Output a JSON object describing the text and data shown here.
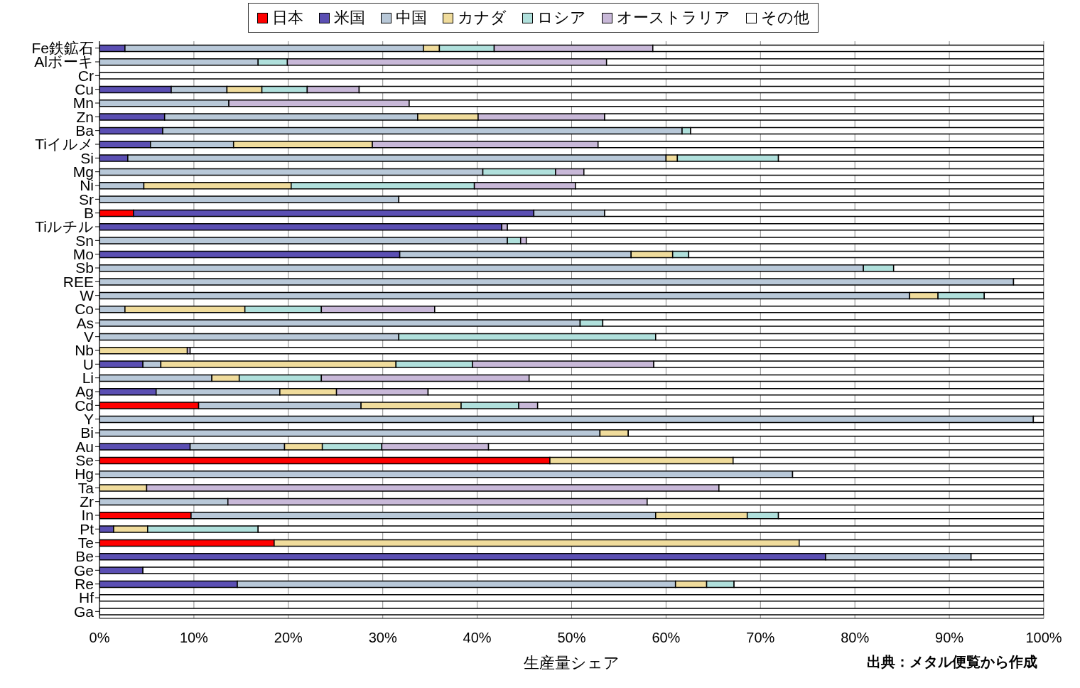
{
  "chart_data": {
    "type": "bar",
    "orientation": "horizontal",
    "stacked": true,
    "categories": [
      "Fe鉄鉱石",
      "Alボーキ",
      "Cr",
      "Cu",
      "Mn",
      "Zn",
      "Ba",
      "Tiイルメ",
      "Si",
      "Mg",
      "Ni",
      "Sr",
      "B",
      "Tiルチル",
      "Sn",
      "Mo",
      "Sb",
      "REE",
      "W",
      "Co",
      "As",
      "V",
      "Nb",
      "U",
      "Li",
      "Ag",
      "Cd",
      "Y",
      "Bi",
      "Au",
      "Se",
      "Hg",
      "Ta",
      "Zr",
      "In",
      "Pt",
      "Te",
      "Be",
      "Ge",
      "Re",
      "Hf",
      "Ga"
    ],
    "series": [
      {
        "name": "日本",
        "color": "#ff0000",
        "values": [
          null,
          null,
          null,
          null,
          null,
          null,
          null,
          null,
          null,
          null,
          null,
          null,
          3.6,
          null,
          null,
          null,
          null,
          null,
          null,
          null,
          null,
          null,
          null,
          null,
          null,
          null,
          10.5,
          null,
          null,
          null,
          47.7,
          null,
          null,
          null,
          9.7,
          null,
          18.5,
          null,
          null,
          null,
          null,
          null
        ]
      },
      {
        "name": "米国",
        "color": "#5b4fb3",
        "values": [
          2.7,
          null,
          null,
          7.6,
          null,
          6.9,
          6.7,
          5.4,
          3.0,
          null,
          null,
          null,
          42.4,
          42.6,
          null,
          31.8,
          null,
          null,
          null,
          null,
          null,
          null,
          null,
          4.6,
          null,
          6.0,
          null,
          null,
          null,
          9.6,
          null,
          null,
          null,
          null,
          null,
          1.5,
          null,
          76.9,
          4.6,
          14.6,
          null,
          null
        ]
      },
      {
        "name": "中国",
        "color": "#b8c8d8",
        "values": [
          31.6,
          16.8,
          null,
          5.9,
          13.7,
          26.8,
          55.0,
          8.8,
          57.0,
          40.6,
          4.7,
          31.7,
          7.5,
          null,
          43.2,
          24.5,
          80.9,
          96.8,
          85.8,
          2.7,
          50.9,
          31.7,
          null,
          1.9,
          11.9,
          13.1,
          17.2,
          98.9,
          53.0,
          10.0,
          null,
          73.4,
          null,
          13.6,
          49.2,
          null,
          null,
          15.4,
          null,
          46.4,
          null,
          null
        ]
      },
      {
        "name": "カナダ",
        "color": "#f0dc9c",
        "values": [
          1.7,
          null,
          null,
          3.7,
          null,
          6.4,
          null,
          14.7,
          1.2,
          null,
          15.6,
          null,
          null,
          null,
          null,
          4.4,
          null,
          null,
          3.0,
          12.7,
          null,
          null,
          9.3,
          24.9,
          2.9,
          6.0,
          10.6,
          null,
          3.0,
          4.0,
          19.4,
          null,
          5.0,
          null,
          9.7,
          3.6,
          55.6,
          null,
          null,
          3.3,
          null,
          null
        ]
      },
      {
        "name": "ロシア",
        "color": "#b0e0dc",
        "values": [
          5.8,
          3.1,
          null,
          4.8,
          null,
          null,
          0.9,
          null,
          10.7,
          7.7,
          19.4,
          null,
          null,
          null,
          1.4,
          1.7,
          3.2,
          null,
          4.9,
          8.1,
          2.4,
          27.2,
          null,
          8.1,
          8.7,
          null,
          6.1,
          null,
          null,
          6.3,
          null,
          null,
          null,
          null,
          3.3,
          11.7,
          null,
          null,
          null,
          2.9,
          null,
          null
        ]
      },
      {
        "name": "オーストラリア",
        "color": "#c8b8d8",
        "values": [
          16.8,
          33.8,
          null,
          5.5,
          19.1,
          13.4,
          null,
          23.9,
          null,
          3.0,
          10.7,
          null,
          null,
          0.6,
          0.6,
          null,
          null,
          null,
          null,
          12.0,
          null,
          null,
          0.3,
          19.2,
          22.0,
          9.7,
          2.0,
          null,
          null,
          11.3,
          null,
          null,
          60.6,
          44.4,
          null,
          null,
          null,
          null,
          null,
          null,
          null,
          null
        ]
      },
      {
        "name": "その他",
        "color": "#ffffff",
        "values": [
          41.4,
          46.3,
          100,
          72.5,
          67.2,
          46.5,
          37.4,
          47.2,
          28.1,
          48.7,
          49.6,
          68.3,
          46.5,
          56.8,
          54.8,
          37.6,
          15.9,
          3.2,
          6.3,
          64.5,
          46.7,
          41.1,
          90.4,
          41.3,
          54.5,
          65.2,
          53.6,
          1.1,
          44.0,
          58.8,
          32.9,
          26.6,
          34.4,
          42.0,
          28.1,
          83.2,
          25.9,
          7.7,
          95.4,
          32.8,
          100,
          100
        ]
      }
    ],
    "xlim": [
      0,
      100
    ],
    "xticks": [
      {
        "value": 0,
        "label": "0%"
      },
      {
        "value": 10,
        "label": "10%"
      },
      {
        "value": 20,
        "label": "20%"
      },
      {
        "value": 30,
        "label": "30%"
      },
      {
        "value": 40,
        "label": "40%"
      },
      {
        "value": 50,
        "label": "50%"
      },
      {
        "value": 60,
        "label": "60%"
      },
      {
        "value": 70,
        "label": "70%"
      },
      {
        "value": 80,
        "label": "80%"
      },
      {
        "value": 90,
        "label": "90%"
      },
      {
        "value": 100,
        "label": "100%"
      }
    ],
    "xlabel": "生産量シェア",
    "annotations": [
      "出典：メタル便覧から作成"
    ],
    "grid": "x",
    "legend": "top"
  }
}
